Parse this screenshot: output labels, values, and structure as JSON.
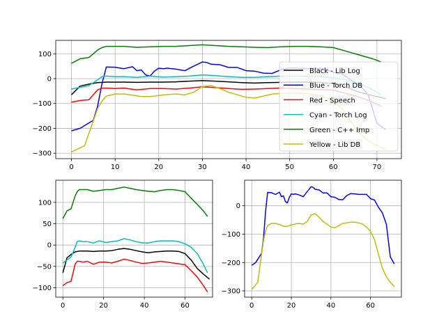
{
  "chart_data": [
    {
      "type": "line",
      "panel": "top",
      "grid": true,
      "xlim": [
        -3.6,
        75.6
      ],
      "ylim": [
        -322,
        154
      ],
      "xticks": [
        0,
        10,
        20,
        30,
        40,
        50,
        60,
        70
      ],
      "yticks": [
        100,
        0,
        -100,
        -200,
        -300
      ],
      "legend": {
        "placement": "right",
        "entries": [
          "Black - Lib Log",
          "Blue - Torch DB",
          "Red - Speech",
          "Cyan - Torch Log",
          "Green - C++ Imp",
          "Yellow - Lib DB"
        ]
      },
      "series": [
        {
          "name": "Black - Lib Log",
          "color": "#000000",
          "x": [
            0,
            2,
            4,
            6,
            8,
            10,
            12,
            15,
            18,
            21,
            24,
            27,
            30,
            33,
            36,
            39,
            42,
            45,
            48,
            51,
            54,
            57,
            60,
            63,
            66,
            69,
            72
          ],
          "y": [
            -65,
            -30,
            -22,
            -16,
            -14,
            -14,
            -14,
            -15,
            -14,
            -14,
            -13,
            -10,
            -8,
            -10,
            -13,
            -16,
            -18,
            -16,
            -15,
            -14,
            -14,
            -15,
            -20,
            -35,
            -55,
            -68,
            -80
          ]
        },
        {
          "name": "Blue - Torch DB",
          "color": "#0000ff",
          "x": [
            0,
            2,
            4,
            5,
            6,
            7,
            8,
            10,
            12,
            14,
            15,
            16,
            17,
            18,
            19,
            20,
            21,
            22,
            24,
            26,
            28,
            30,
            31,
            32,
            34,
            36,
            38,
            40,
            42,
            44,
            46,
            48,
            50,
            52,
            54,
            56,
            58,
            60,
            62,
            64,
            66,
            68,
            70,
            72
          ],
          "y": [
            -210,
            -200,
            -178,
            -168,
            -110,
            -20,
            47,
            46,
            40,
            48,
            32,
            35,
            15,
            10,
            30,
            42,
            40,
            42,
            38,
            32,
            50,
            67,
            65,
            58,
            56,
            45,
            45,
            32,
            30,
            22,
            21,
            36,
            43,
            42,
            40,
            40,
            40,
            25,
            20,
            -5,
            -25,
            -65,
            -180,
            -205
          ]
        },
        {
          "name": "Red - Speech",
          "color": "#ff0000",
          "x": [
            0,
            2,
            4,
            6,
            7,
            8,
            10,
            12,
            15,
            18,
            21,
            24,
            27,
            30,
            33,
            36,
            39,
            42,
            45,
            48,
            51,
            54,
            57,
            60,
            63,
            66,
            69,
            71
          ],
          "y": [
            -95,
            -88,
            -85,
            -45,
            -38,
            -38,
            -40,
            -38,
            -45,
            -40,
            -40,
            -42,
            -38,
            -33,
            -36,
            -40,
            -43,
            -42,
            -40,
            -38,
            -40,
            -42,
            -44,
            -46,
            -60,
            -75,
            -95,
            -110
          ]
        },
        {
          "name": "Cyan - Torch Log",
          "color": "#00bfbf",
          "x": [
            0,
            2,
            4,
            6,
            7,
            8,
            10,
            12,
            15,
            18,
            21,
            24,
            27,
            30,
            33,
            36,
            39,
            42,
            45,
            48,
            51,
            54,
            57,
            60,
            63,
            66,
            69,
            71
          ],
          "y": [
            -42,
            -35,
            -28,
            -5,
            8,
            10,
            8,
            8,
            5,
            10,
            6,
            8,
            10,
            15,
            12,
            8,
            5,
            5,
            8,
            10,
            10,
            10,
            8,
            3,
            -5,
            -20,
            -45,
            -65
          ]
        },
        {
          "name": "Green - C++ Imp",
          "color": "#008000",
          "x": [
            0,
            2,
            4,
            6,
            7,
            8,
            10,
            12,
            15,
            18,
            21,
            24,
            27,
            30,
            33,
            36,
            39,
            42,
            45,
            48,
            51,
            54,
            57,
            60,
            63,
            66,
            69,
            71
          ],
          "y": [
            62,
            80,
            85,
            115,
            125,
            130,
            130,
            130,
            126,
            128,
            130,
            130,
            133,
            136,
            133,
            130,
            128,
            126,
            125,
            128,
            130,
            130,
            128,
            125,
            110,
            95,
            80,
            67
          ]
        },
        {
          "name": "Yellow - Lib DB",
          "color": "#bfbf00",
          "x": [
            0,
            3,
            4,
            5,
            6,
            7,
            8,
            10,
            12,
            14,
            16,
            18,
            20,
            22,
            24,
            26,
            28,
            30,
            32,
            34,
            36,
            38,
            40,
            42,
            44,
            46,
            48,
            50,
            52,
            54,
            56,
            58,
            60,
            62,
            64,
            66,
            68,
            70,
            72
          ],
          "y": [
            -295,
            -270,
            -220,
            -170,
            -120,
            -90,
            -70,
            -62,
            -62,
            -66,
            -72,
            -72,
            -68,
            -64,
            -62,
            -65,
            -55,
            -32,
            -28,
            -40,
            -55,
            -65,
            -75,
            -78,
            -70,
            -62,
            -60,
            -58,
            -58,
            -60,
            -65,
            -75,
            -90,
            -120,
            -170,
            -220,
            -250,
            -270,
            -285
          ]
        }
      ]
    },
    {
      "type": "line",
      "panel": "bottom-left",
      "grid": true,
      "xlim": [
        -3.5,
        73.5
      ],
      "ylim": [
        -122,
        152
      ],
      "xticks": [
        0,
        20,
        40,
        60
      ],
      "yticks": [
        100,
        50,
        0,
        -50,
        -100
      ],
      "series": [
        {
          "color": "#000000",
          "ref": "Black - Lib Log"
        },
        {
          "color": "#ff0000",
          "ref": "Red - Speech"
        },
        {
          "color": "#00bfbf",
          "ref": "Cyan - Torch Log"
        },
        {
          "color": "#008000",
          "ref": "Green - C++ Imp"
        }
      ]
    },
    {
      "type": "line",
      "panel": "bottom-right",
      "grid": true,
      "xlim": [
        -3.6,
        75.6
      ],
      "ylim": [
        -322,
        90
      ],
      "xticks": [
        0,
        20,
        40,
        60
      ],
      "yticks": [
        0,
        -100,
        -200,
        -300
      ],
      "series": [
        {
          "color": "#0000ff",
          "ref": "Blue - Torch DB"
        },
        {
          "color": "#bfbf00",
          "ref": "Yellow - Lib DB"
        }
      ]
    }
  ]
}
